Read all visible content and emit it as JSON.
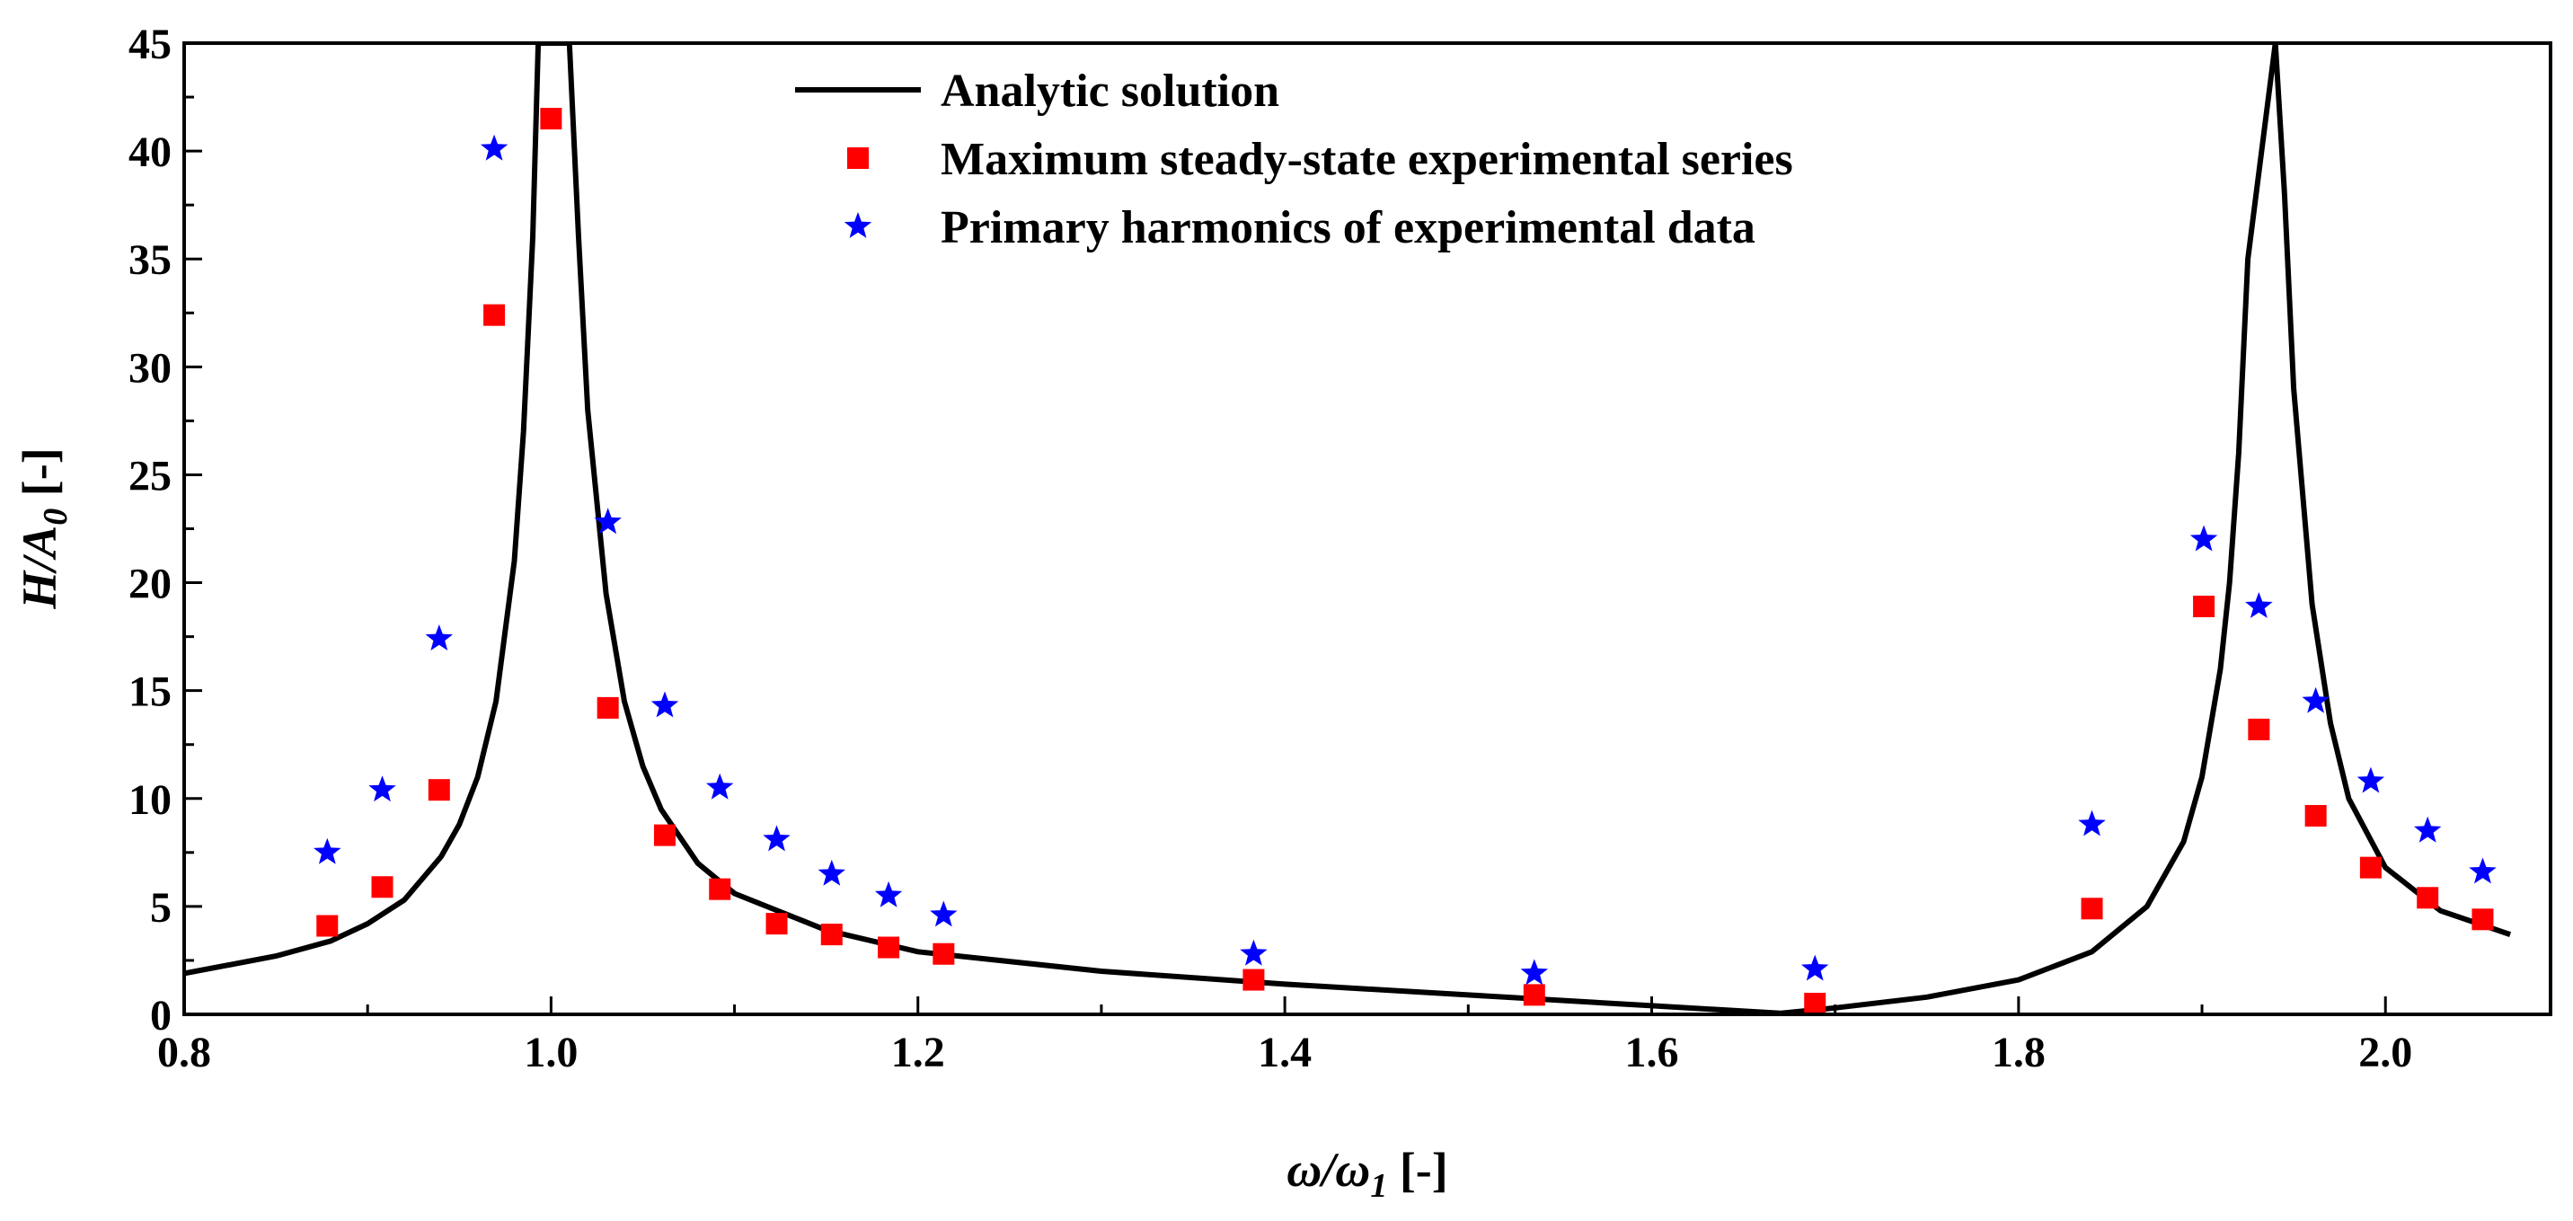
{
  "chart_data": {
    "type": "line",
    "title": "",
    "xlabel": {
      "main": "ω/ω",
      "sub": "1",
      "unit": " [-]"
    },
    "ylabel": {
      "main": "H/A",
      "sub": "0",
      "unit": " [-]"
    },
    "xlim": [
      0.8,
      2.09
    ],
    "ylim": [
      0,
      45
    ],
    "xticks": [
      0.8,
      1.0,
      1.2,
      1.4,
      1.6,
      1.8,
      2.0
    ],
    "xtick_labels": [
      "0.8",
      "1.0",
      "1.2",
      "1.4",
      "1.6",
      "1.8",
      "2.0"
    ],
    "yticks": [
      0,
      5,
      10,
      15,
      20,
      25,
      30,
      35,
      40,
      45
    ],
    "ytick_labels": [
      "0",
      "5",
      "10",
      "15",
      "20",
      "25",
      "30",
      "35",
      "40",
      "45"
    ],
    "grid": false,
    "legend_position": "top-center",
    "legend": [
      "Analytic solution",
      "Maximum steady-state experimental series",
      "Primary harmonics of experimental data"
    ],
    "series": [
      {
        "name": "Analytic solution",
        "kind": "line",
        "color": "#000000",
        "x": [
          0.8,
          0.85,
          0.88,
          0.9,
          0.92,
          0.94,
          0.95,
          0.96,
          0.97,
          0.98,
          0.985,
          0.99,
          0.993,
          1.01,
          1.015,
          1.02,
          1.03,
          1.04,
          1.05,
          1.06,
          1.08,
          1.1,
          1.15,
          1.2,
          1.3,
          1.4,
          1.5,
          1.6,
          1.67,
          1.7,
          1.75,
          1.8,
          1.84,
          1.87,
          1.89,
          1.9,
          1.91,
          1.915,
          1.92,
          1.925,
          1.94,
          1.945,
          1.95,
          1.96,
          1.97,
          1.98,
          2.0,
          2.03,
          2.068
        ],
        "y": [
          1.9,
          2.7,
          3.4,
          4.2,
          5.3,
          7.3,
          8.8,
          11.0,
          14.5,
          21.0,
          27.0,
          36.0,
          45.0,
          45.0,
          36.0,
          28.0,
          19.5,
          14.5,
          11.5,
          9.5,
          7.0,
          5.6,
          3.9,
          2.9,
          2.0,
          1.4,
          0.9,
          0.4,
          0.05,
          0.3,
          0.8,
          1.6,
          2.9,
          5.0,
          8.0,
          11.0,
          16.0,
          20.0,
          26.0,
          35.0,
          45.0,
          38.0,
          29.0,
          19.0,
          13.5,
          10.0,
          6.8,
          4.8,
          3.7
        ]
      },
      {
        "name": "Maximum steady-state experimental series",
        "kind": "scatter",
        "marker": "square",
        "color": "#ff0000",
        "x": [
          0.878,
          0.908,
          0.939,
          0.969,
          1.0,
          1.031,
          1.062,
          1.092,
          1.123,
          1.153,
          1.184,
          1.214,
          1.383,
          1.536,
          1.689,
          1.84,
          1.901,
          1.931,
          1.962,
          1.992,
          2.023,
          2.053
        ],
        "y": [
          4.1,
          5.9,
          10.4,
          32.4,
          41.5,
          14.2,
          8.3,
          5.8,
          4.2,
          3.7,
          3.1,
          2.8,
          1.6,
          0.9,
          0.5,
          4.9,
          18.9,
          13.2,
          9.2,
          6.8,
          5.4,
          4.4
        ]
      },
      {
        "name": "Primary harmonics of experimental data",
        "kind": "scatter",
        "marker": "star",
        "color": "#0000ff",
        "x": [
          0.878,
          0.908,
          0.939,
          0.969,
          1.031,
          1.062,
          1.092,
          1.123,
          1.153,
          1.184,
          1.214,
          1.383,
          1.536,
          1.689,
          1.84,
          1.901,
          1.931,
          1.962,
          1.992,
          2.023,
          2.053
        ],
        "y": [
          7.5,
          10.4,
          17.4,
          40.1,
          22.8,
          14.3,
          10.5,
          8.1,
          6.5,
          5.5,
          4.6,
          2.8,
          1.9,
          2.1,
          8.8,
          22.0,
          18.9,
          14.5,
          10.8,
          8.5,
          6.6
        ]
      }
    ]
  }
}
